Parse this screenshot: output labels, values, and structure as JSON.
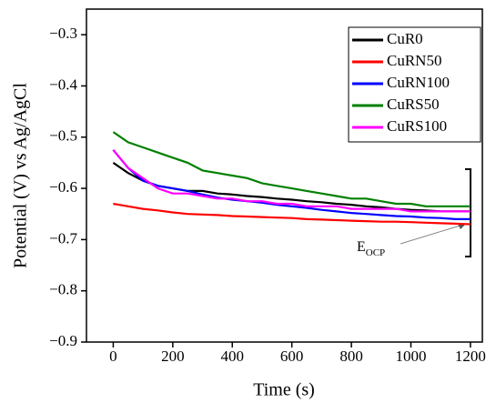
{
  "chart_data": {
    "type": "line",
    "x_label": "Time (s)",
    "y_label": "Potential (V) vs Ag/AgCl",
    "x": [
      0,
      50,
      100,
      150,
      200,
      250,
      300,
      350,
      400,
      450,
      500,
      550,
      600,
      650,
      700,
      750,
      800,
      850,
      900,
      950,
      1000,
      1050,
      1100,
      1150,
      1200
    ],
    "series": [
      {
        "name": "CuR0",
        "color": "#000000",
        "values": [
          -0.55,
          -0.57,
          -0.585,
          -0.595,
          -0.6,
          -0.605,
          -0.605,
          -0.61,
          -0.612,
          -0.615,
          -0.617,
          -0.62,
          -0.622,
          -0.625,
          -0.627,
          -0.63,
          -0.632,
          -0.635,
          -0.637,
          -0.64,
          -0.642,
          -0.643,
          -0.645,
          -0.645,
          -0.645
        ]
      },
      {
        "name": "CuRN50",
        "color": "#ff0000",
        "values": [
          -0.63,
          -0.635,
          -0.64,
          -0.643,
          -0.647,
          -0.65,
          -0.651,
          -0.652,
          -0.654,
          -0.655,
          -0.656,
          -0.657,
          -0.658,
          -0.66,
          -0.661,
          -0.662,
          -0.663,
          -0.664,
          -0.665,
          -0.665,
          -0.666,
          -0.667,
          -0.668,
          -0.669,
          -0.67
        ]
      },
      {
        "name": "CuRN100",
        "color": "#0000ff",
        "values": [
          -0.525,
          -0.56,
          -0.585,
          -0.595,
          -0.6,
          -0.605,
          -0.612,
          -0.618,
          -0.622,
          -0.625,
          -0.628,
          -0.632,
          -0.635,
          -0.638,
          -0.642,
          -0.645,
          -0.648,
          -0.65,
          -0.652,
          -0.654,
          -0.655,
          -0.657,
          -0.658,
          -0.66,
          -0.66
        ]
      },
      {
        "name": "CuRS50",
        "color": "#008000",
        "values": [
          -0.49,
          -0.51,
          -0.52,
          -0.53,
          -0.54,
          -0.55,
          -0.565,
          -0.57,
          -0.575,
          -0.58,
          -0.59,
          -0.595,
          -0.6,
          -0.605,
          -0.61,
          -0.615,
          -0.62,
          -0.62,
          -0.625,
          -0.63,
          -0.63,
          -0.635,
          -0.635,
          -0.635,
          -0.635
        ]
      },
      {
        "name": "CuRS100",
        "color": "#ff00ff",
        "values": [
          -0.525,
          -0.56,
          -0.58,
          -0.6,
          -0.61,
          -0.61,
          -0.615,
          -0.62,
          -0.62,
          -0.625,
          -0.625,
          -0.63,
          -0.63,
          -0.635,
          -0.635,
          -0.635,
          -0.64,
          -0.64,
          -0.64,
          -0.64,
          -0.645,
          -0.645,
          -0.645,
          -0.645,
          -0.645
        ]
      }
    ],
    "xlim": [
      -90,
      1240
    ],
    "ylim": [
      -0.9,
      -0.25
    ],
    "xticks": [
      0,
      200,
      400,
      600,
      800,
      1000,
      1200
    ],
    "yticks": [
      {
        "value": -0.3,
        "label": "−0.3"
      },
      {
        "value": -0.4,
        "label": "−0.4"
      },
      {
        "value": -0.5,
        "label": "−0.5"
      },
      {
        "value": -0.6,
        "label": "−0.6"
      },
      {
        "value": -0.7,
        "label": "−0.7"
      },
      {
        "value": -0.8,
        "label": "−0.8"
      },
      {
        "value": -0.9,
        "label": "−0.9"
      }
    ],
    "annotation": {
      "text": "E",
      "subscript": "OCP"
    },
    "legend": "upper right"
  }
}
